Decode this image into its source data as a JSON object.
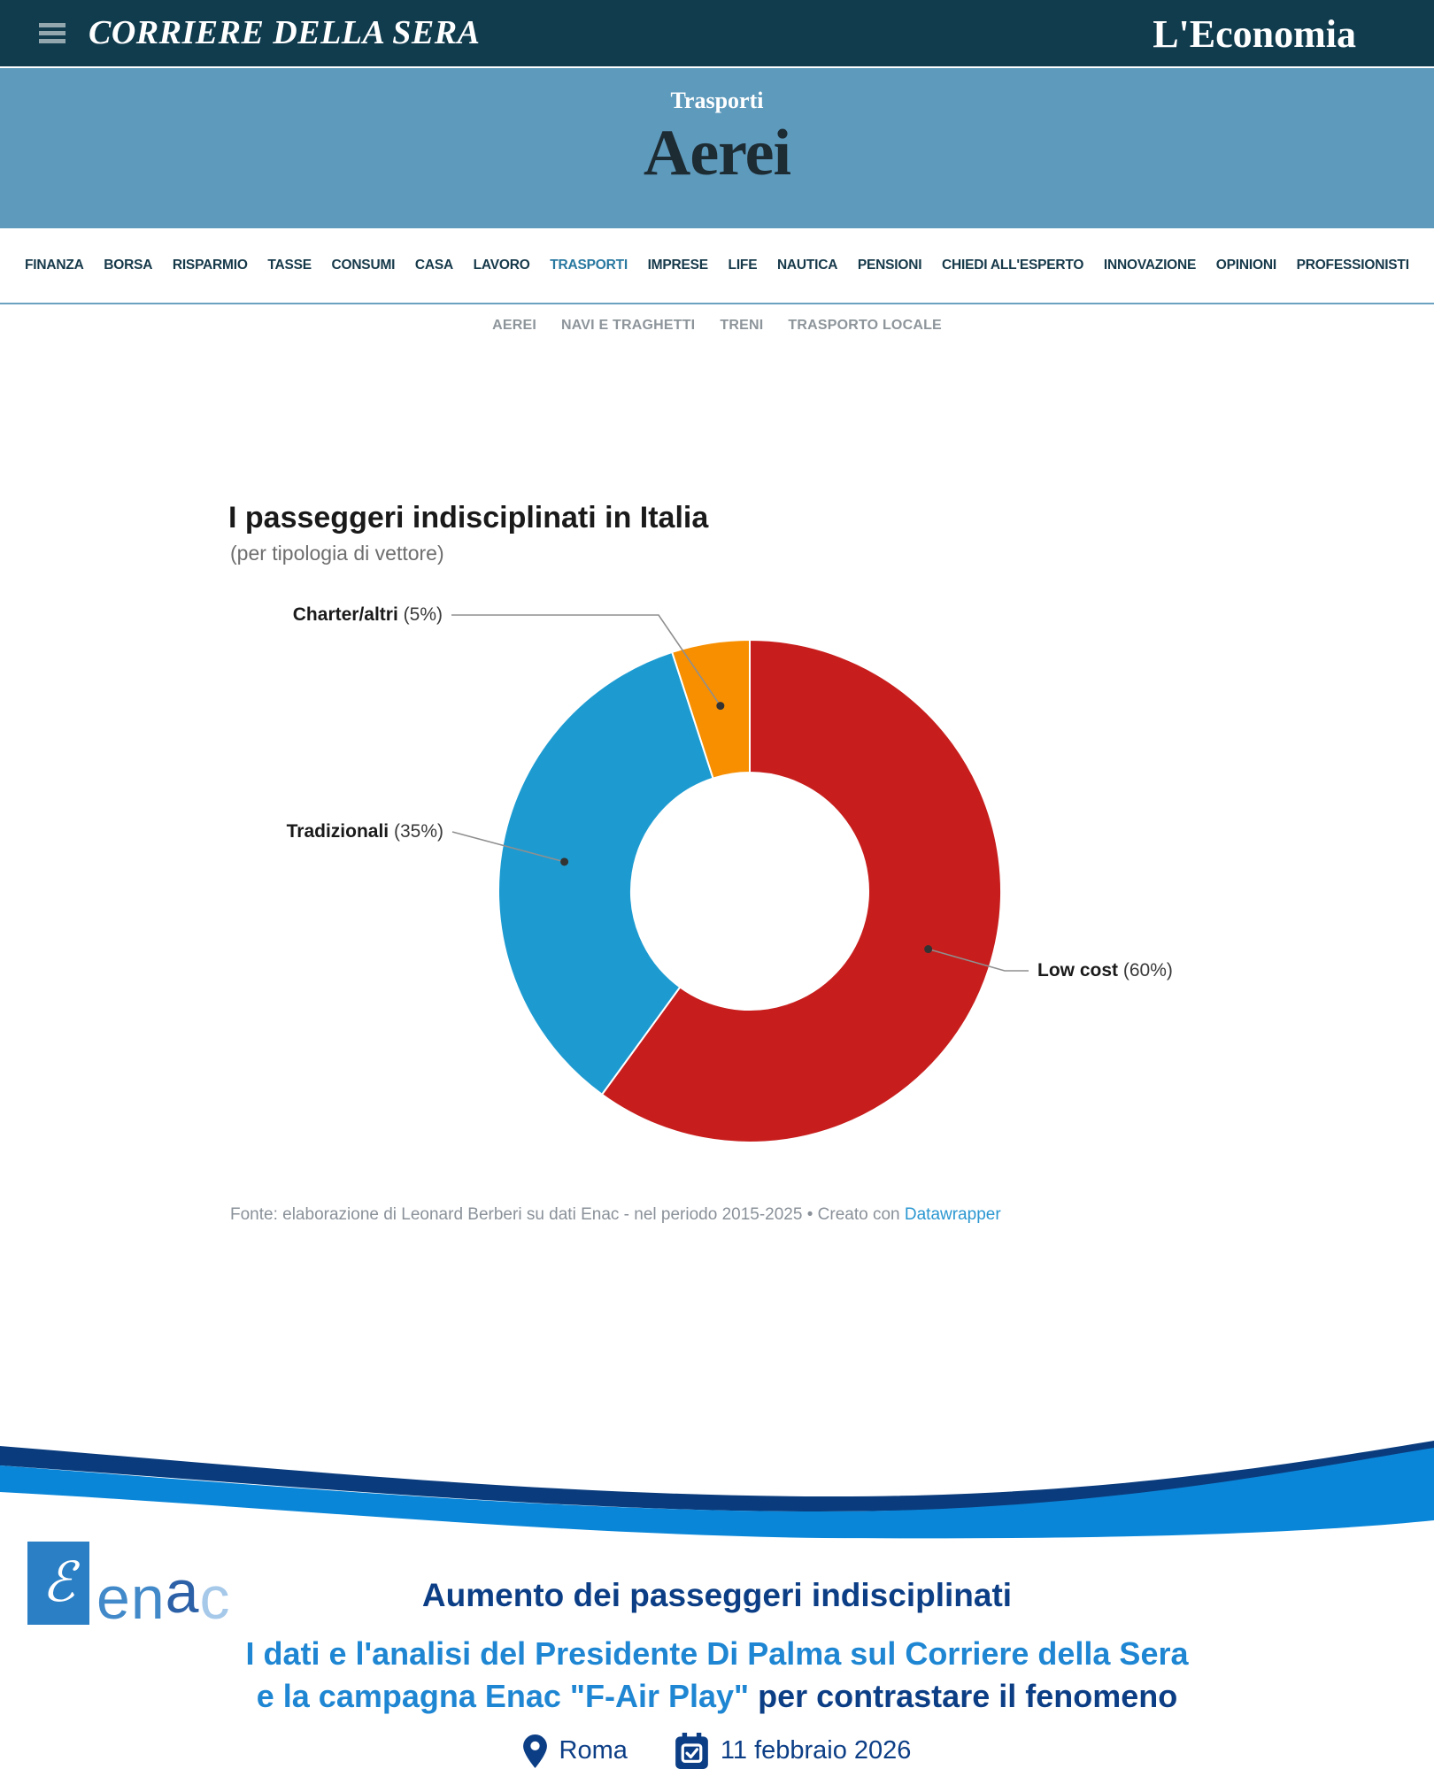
{
  "masthead": {
    "left": "CORRIERE DELLA SERA",
    "right": "L'Economia"
  },
  "hero": {
    "kicker": "Trasporti",
    "title": "Aerei"
  },
  "nav": {
    "items": [
      "FINANZA",
      "BORSA",
      "RISPARMIO",
      "TASSE",
      "CONSUMI",
      "CASA",
      "LAVORO",
      "TRASPORTI",
      "IMPRESE",
      "LIFE",
      "NAUTICA",
      "PENSIONI",
      "CHIEDI ALL'ESPERTO",
      "INNOVAZIONE",
      "OPINIONI",
      "PROFESSIONISTI"
    ],
    "active": "TRASPORTI"
  },
  "subnav": {
    "items": [
      "AEREI",
      "NAVI E TRAGHETTI",
      "TRENI",
      "TRASPORTO LOCALE"
    ]
  },
  "chart_data": {
    "type": "pie",
    "donut": true,
    "title": "I passeggeri indisciplinati in Italia",
    "subtitle": "(per tipologia di vettore)",
    "slices": [
      {
        "label": "Low cost",
        "value": 60,
        "color": "#c71e1d"
      },
      {
        "label": "Tradizionali",
        "value": 35,
        "color": "#1d9bd1"
      },
      {
        "label": "Charter/altri",
        "value": 5,
        "color": "#f78f00"
      }
    ],
    "source_prefix": "Fonte: elaborazione di Leonard Berberi su dati Enac - nel periodo 2015-2025 • Creato con ",
    "source_link": "Datawrapper"
  },
  "footer": {
    "logo_letters": [
      {
        "ch": "e",
        "cls": "l-e"
      },
      {
        "ch": "n",
        "cls": "l-n"
      },
      {
        "ch": "a",
        "cls": "l-a"
      },
      {
        "ch": "c",
        "cls": "l-c"
      }
    ],
    "heading": "Aumento dei passeggeri indisciplinati",
    "line1": "I dati e l'analisi del Presidente Di Palma sul Corriere della Sera",
    "line2_blue": "e la campagna Enac \"F-Air Play\"",
    "line2_dark": " per contrastare il fenomeno",
    "location": "Roma",
    "date": "11 febbraio 2026"
  },
  "colors": {
    "topbar_bg": "#113c4e",
    "hero_bg": "#5e9abc",
    "nav_active": "#2878a0",
    "wave_navy": "#0a3c7d",
    "wave_blue": "#0a86d8",
    "footer_navy": "#0c3e86",
    "footer_blue": "#1e86d2"
  }
}
